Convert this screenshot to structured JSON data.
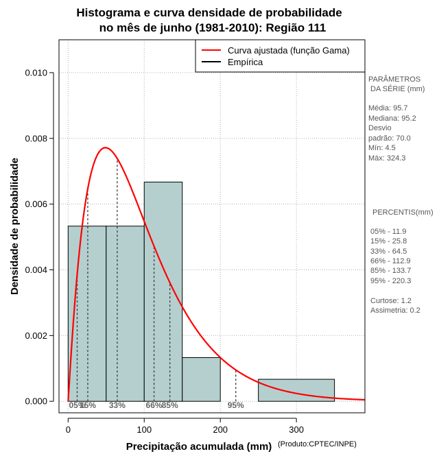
{
  "chart_data": {
    "type": "bar",
    "title_line1": "Histograma e curva densidade de probabilidade",
    "title_line2": "no mês de junho (1981-2010): Região 111",
    "xlabel": "Precipitação acumulada (mm)",
    "ylabel": "Densidade de probabilidade",
    "credit": "(Produto:CPTEC/INPE)",
    "xlim": [
      -12,
      390
    ],
    "ylim": [
      -0.00035,
      0.011
    ],
    "xticks": [
      0,
      100,
      200,
      300
    ],
    "yticks": [
      0.0,
      0.002,
      0.004,
      0.006,
      0.008,
      0.01
    ],
    "ytick_labels": [
      "0.000",
      "0.002",
      "0.004",
      "0.006",
      "0.008",
      "0.010"
    ],
    "grid": true,
    "bar_color": "#b5cfcf",
    "curve_color": "#ff0000",
    "histogram": [
      {
        "x0": 0,
        "x1": 50,
        "density": 0.00533
      },
      {
        "x0": 50,
        "x1": 100,
        "density": 0.00533
      },
      {
        "x0": 100,
        "x1": 150,
        "density": 0.00667
      },
      {
        "x0": 150,
        "x1": 200,
        "density": 0.00133
      },
      {
        "x0": 200,
        "x1": 250,
        "density": 0.0
      },
      {
        "x0": 250,
        "x1": 350,
        "density": 0.00067
      }
    ],
    "gamma_fit": {
      "shape": 2.05,
      "scale": 46.7
    },
    "percentile_markers": [
      {
        "label": "05%",
        "value": 11.9
      },
      {
        "label": "15%",
        "value": 25.8
      },
      {
        "label": "33%",
        "value": 64.5
      },
      {
        "label": "66%",
        "value": 112.9
      },
      {
        "label": "85%",
        "value": 133.7
      },
      {
        "label": "95%",
        "value": 220.3
      }
    ],
    "legend": {
      "position": "top-right",
      "entries": [
        {
          "label": "Curva ajustada (função Gama)",
          "color": "#ff0000"
        },
        {
          "label": "Empírica",
          "color": "#000000"
        }
      ]
    }
  },
  "side_panel": {
    "params_title_1": "PARÂMETROS",
    "params_title_2": "DA SÉRIE (mm)",
    "media": "Média:  95.7",
    "mediana": "Mediana:  95.2",
    "desvio_1": "Desvio",
    "desvio_2": "padrão:  70.0",
    "min": "Mín:  4.5",
    "max": "Máx:  324.3",
    "percentis_title": "PERCENTIS(mm)",
    "p05": "05% -  11.9",
    "p15": "15% -  25.8",
    "p33": "33% -  64.5",
    "p66": "66% -  112.9",
    "p85": "85% -  133.7",
    "p95": "95% -  220.3",
    "curtose": "Curtose:  1.2",
    "assimetria": "Assimetria:  0.2"
  }
}
